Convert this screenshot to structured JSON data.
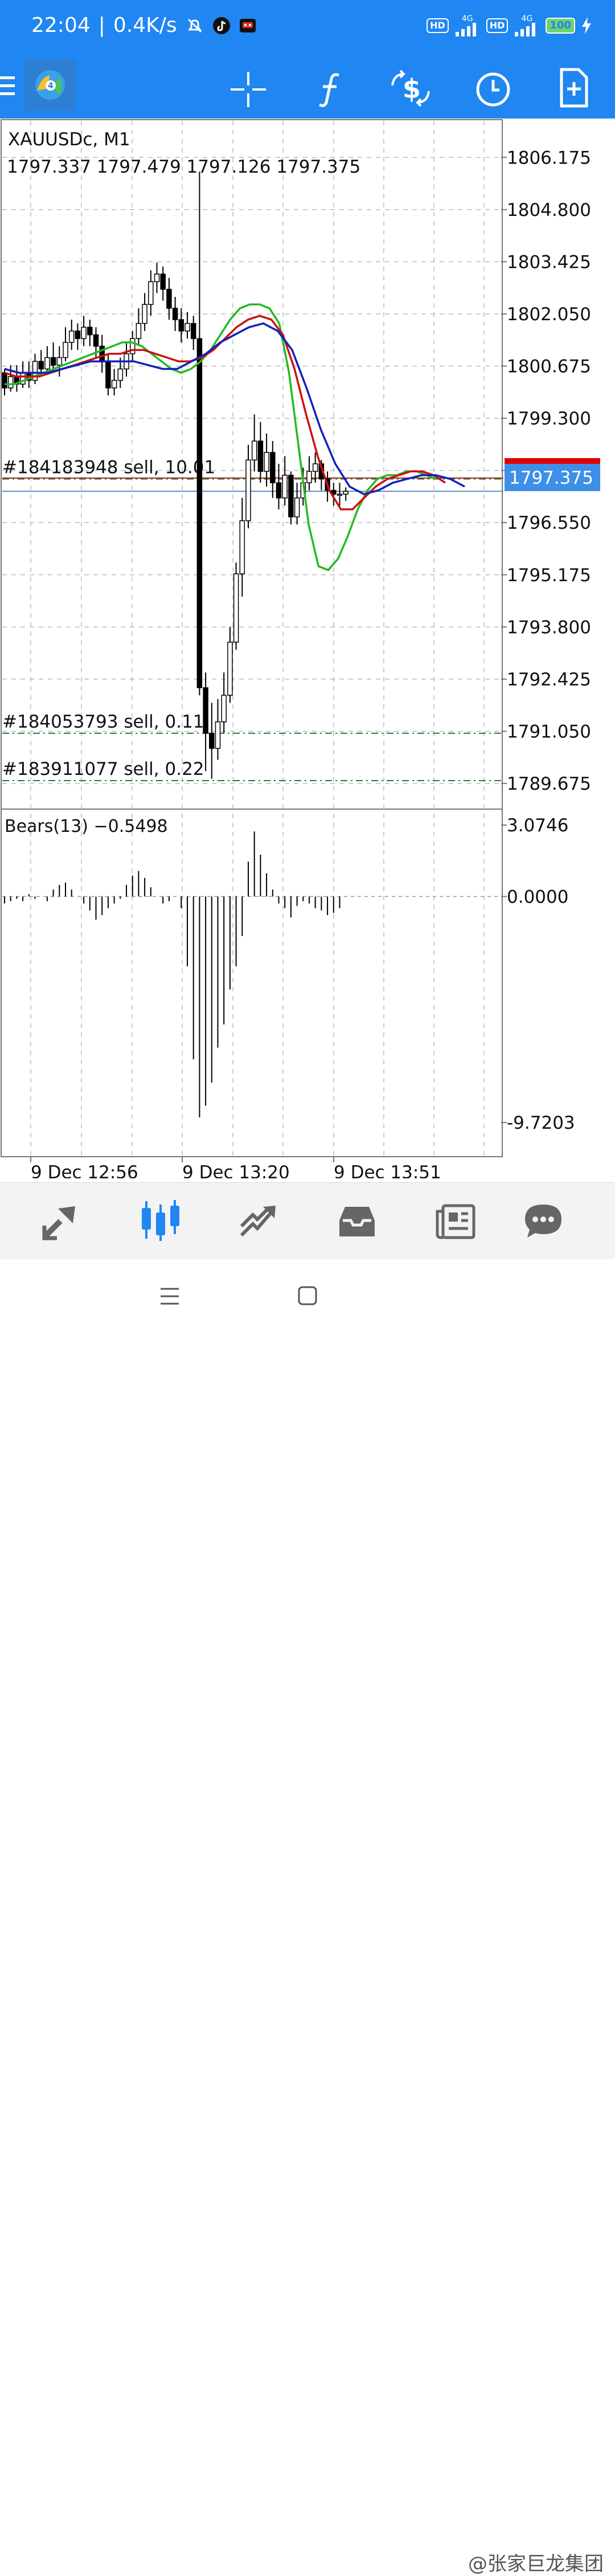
{
  "status_bar": {
    "time": "22:04",
    "net_speed": "0.4K/s",
    "hd1": "HD",
    "net1": "4G",
    "hd2": "HD",
    "net2": "4G",
    "battery": "100",
    "icons": [
      "mute-bell-icon",
      "tiktok-icon",
      "app-notification-icon",
      "signal-icon",
      "battery-icon",
      "charging-icon"
    ]
  },
  "app_bar": {
    "icons": [
      "menu-icon",
      "metatrader-logo-icon",
      "crosshair-icon",
      "function-icon",
      "dollar-icon",
      "clock-icon",
      "new-document-icon"
    ]
  },
  "chart": {
    "symbol_title": "XAUUSDc, M1",
    "ohlc": "1797.337 1797.479 1797.126 1797.375",
    "current_price": "1797.375",
    "price_scale": [
      "1806.175",
      "1804.800",
      "1803.425",
      "1802.050",
      "1800.675",
      "1799.300",
      "1797.925",
      "1796.550",
      "1795.175",
      "1793.800",
      "1792.425",
      "1791.050",
      "1789.675"
    ],
    "orders": [
      {
        "label": "#184183948 sell, 10.01",
        "price": 1797.7
      },
      {
        "label": "#184053793 sell, 0.11",
        "price": 1791.0
      },
      {
        "label": "#183911077 sell, 0.22",
        "price": 1789.75
      }
    ],
    "indicator_title": "Bears(13) −0.5498",
    "indicator_scale": [
      "3.0746",
      "0.0000",
      "-9.7203"
    ],
    "time_labels": [
      "9 Dec 12:56",
      "9 Dec 13:20",
      "9 Dec 13:51"
    ],
    "colors": {
      "bid_line": "#a03030",
      "ask_line": "#5a8fc0",
      "price_tag": "#3d8fe8",
      "ask_tag": "#e00000",
      "ma_fast": "#22bb22",
      "ma_mid": "#cc1111",
      "ma_slow": "#1122bb"
    }
  },
  "chart_data": {
    "type": "candlestick",
    "title": "XAUUSDc, M1",
    "ylim": [
      1789.0,
      1807.2
    ],
    "candles": [
      [
        1800.5,
        1800.1,
        1800.6,
        1799.9
      ],
      [
        1800.1,
        1800.4,
        1800.7,
        1800.0
      ],
      [
        1800.4,
        1800.2,
        1800.7,
        1800.0
      ],
      [
        1800.2,
        1800.5,
        1800.8,
        1800.1
      ],
      [
        1800.5,
        1800.3,
        1800.8,
        1800.1
      ],
      [
        1800.3,
        1800.8,
        1801.0,
        1800.2
      ],
      [
        1800.8,
        1800.6,
        1801.1,
        1800.4
      ],
      [
        1800.6,
        1800.9,
        1801.2,
        1800.5
      ],
      [
        1800.9,
        1800.7,
        1801.3,
        1800.5
      ],
      [
        1800.7,
        1800.9,
        1801.2,
        1800.4
      ],
      [
        1800.9,
        1801.3,
        1801.7,
        1800.8
      ],
      [
        1801.3,
        1801.6,
        1801.9,
        1801.1
      ],
      [
        1801.6,
        1801.4,
        1801.8,
        1801.1
      ],
      [
        1801.4,
        1801.7,
        1802.0,
        1801.2
      ],
      [
        1801.7,
        1801.5,
        1801.9,
        1801.2
      ],
      [
        1801.5,
        1801.2,
        1801.7,
        1800.9
      ],
      [
        1801.2,
        1800.8,
        1801.5,
        1800.5
      ],
      [
        1800.8,
        1800.1,
        1801.0,
        1799.9
      ],
      [
        1800.1,
        1800.3,
        1800.6,
        1799.9
      ],
      [
        1800.3,
        1800.6,
        1800.9,
        1800.1
      ],
      [
        1800.6,
        1801.0,
        1801.3,
        1800.4
      ],
      [
        1801.0,
        1801.4,
        1801.6,
        1800.8
      ],
      [
        1801.4,
        1801.8,
        1802.2,
        1801.2
      ],
      [
        1801.8,
        1802.3,
        1802.6,
        1801.6
      ],
      [
        1802.3,
        1802.9,
        1803.2,
        1802.0
      ],
      [
        1802.9,
        1803.1,
        1803.4,
        1802.6
      ],
      [
        1803.1,
        1802.7,
        1803.3,
        1802.4
      ],
      [
        1802.7,
        1802.2,
        1803.0,
        1801.9
      ],
      [
        1802.2,
        1801.9,
        1802.5,
        1801.6
      ],
      [
        1801.9,
        1801.6,
        1802.2,
        1801.3
      ],
      [
        1801.6,
        1801.8,
        1802.1,
        1801.4
      ],
      [
        1801.8,
        1801.4,
        1802.0,
        1801.1
      ],
      [
        1801.4,
        1792.2,
        1805.8,
        1792.0
      ],
      [
        1792.2,
        1791.0,
        1792.6,
        1790.0
      ],
      [
        1791.0,
        1790.6,
        1791.8,
        1789.8
      ],
      [
        1790.6,
        1791.3,
        1791.9,
        1790.3
      ],
      [
        1791.3,
        1792.0,
        1792.6,
        1791.0
      ],
      [
        1792.0,
        1793.4,
        1793.8,
        1791.8
      ],
      [
        1793.4,
        1795.2,
        1795.5,
        1793.2
      ],
      [
        1795.2,
        1796.6,
        1797.2,
        1794.6
      ],
      [
        1796.6,
        1798.2,
        1798.6,
        1796.4
      ],
      [
        1798.2,
        1798.7,
        1799.4,
        1797.9
      ],
      [
        1798.7,
        1797.9,
        1799.2,
        1797.6
      ],
      [
        1797.9,
        1798.4,
        1798.9,
        1797.5
      ],
      [
        1798.4,
        1797.6,
        1798.7,
        1797.2
      ],
      [
        1797.6,
        1797.2,
        1798.1,
        1796.9
      ],
      [
        1797.2,
        1797.8,
        1798.3,
        1797.0
      ],
      [
        1797.8,
        1796.7,
        1797.9,
        1796.5
      ],
      [
        1796.7,
        1797.2,
        1797.6,
        1796.5
      ],
      [
        1797.2,
        1797.6,
        1798.0,
        1797.0
      ],
      [
        1797.6,
        1797.9,
        1798.3,
        1797.4
      ],
      [
        1797.9,
        1798.1,
        1798.4,
        1797.6
      ],
      [
        1798.1,
        1797.7,
        1798.2,
        1797.4
      ],
      [
        1797.7,
        1797.4,
        1797.9,
        1797.1
      ],
      [
        1797.4,
        1797.3,
        1797.6,
        1797.0
      ],
      [
        1797.3,
        1797.3,
        1797.6,
        1797.0
      ],
      [
        1797.3,
        1797.375,
        1797.479,
        1797.126
      ]
    ],
    "ma_fast": [
      1800.2,
      1800.2,
      1800.3,
      1800.4,
      1800.5,
      1800.6,
      1800.7,
      1800.8,
      1800.9,
      1801.0,
      1801.1,
      1801.2,
      1801.3,
      1801.3,
      1801.2,
      1801.0,
      1800.8,
      1800.6,
      1800.5,
      1800.6,
      1800.8,
      1801.1,
      1801.5,
      1801.9,
      1802.2,
      1802.3,
      1802.3,
      1802.2,
      1801.8,
      1800.5,
      1798.5,
      1796.5,
      1795.4,
      1795.3,
      1795.6,
      1796.2,
      1796.9,
      1797.4,
      1797.7,
      1797.8,
      1797.8,
      1797.9,
      1797.9,
      1797.8,
      1797.7
    ],
    "ma_mid": [
      1800.5,
      1800.4,
      1800.4,
      1800.4,
      1800.5,
      1800.6,
      1800.7,
      1800.8,
      1800.9,
      1801.0,
      1801.0,
      1801.1,
      1801.1,
      1801.0,
      1800.9,
      1800.8,
      1800.8,
      1800.9,
      1801.1,
      1801.4,
      1801.7,
      1801.9,
      1802.0,
      1801.9,
      1801.5,
      1800.6,
      1799.4,
      1798.3,
      1797.4,
      1796.9,
      1796.9,
      1797.2,
      1797.5,
      1797.7,
      1797.8,
      1797.9,
      1797.9,
      1797.8,
      1797.6
    ],
    "ma_slow": [
      1800.6,
      1800.5,
      1800.5,
      1800.5,
      1800.6,
      1800.7,
      1800.8,
      1800.8,
      1800.8,
      1800.8,
      1800.7,
      1800.6,
      1800.6,
      1800.8,
      1801.0,
      1801.3,
      1801.5,
      1801.7,
      1801.8,
      1801.6,
      1801.1,
      1800.1,
      1799.0,
      1798.1,
      1797.5,
      1797.3,
      1797.4,
      1797.6,
      1797.7,
      1797.8,
      1797.8,
      1797.7,
      1797.5
    ],
    "bears": [
      -0.3,
      -0.2,
      -0.1,
      -0.2,
      0.1,
      -0.1,
      0.0,
      -0.2,
      0.3,
      0.5,
      0.6,
      0.3,
      0.0,
      -0.3,
      -0.6,
      -1.0,
      -0.8,
      -0.5,
      -0.3,
      -0.1,
      0.5,
      0.9,
      1.1,
      0.8,
      0.4,
      0.0,
      -0.3,
      -0.2,
      0.0,
      -0.5,
      -3.0,
      -7.0,
      -9.5,
      -9.0,
      -8.0,
      -6.5,
      -5.5,
      -4.0,
      -3.0,
      -1.7,
      1.5,
      2.8,
      1.8,
      1.0,
      0.3,
      -0.3,
      -0.5,
      -0.9,
      -0.4,
      -0.2,
      -0.3,
      -0.5,
      -0.6,
      -0.8,
      -0.7,
      -0.5
    ]
  },
  "bottom_nav": {
    "items": [
      "quotes-icon",
      "chart-icon",
      "trade-icon",
      "history-icon",
      "news-icon",
      "chat-icon"
    ]
  },
  "system_nav": {
    "watermark": "@张家巨龙集团"
  }
}
